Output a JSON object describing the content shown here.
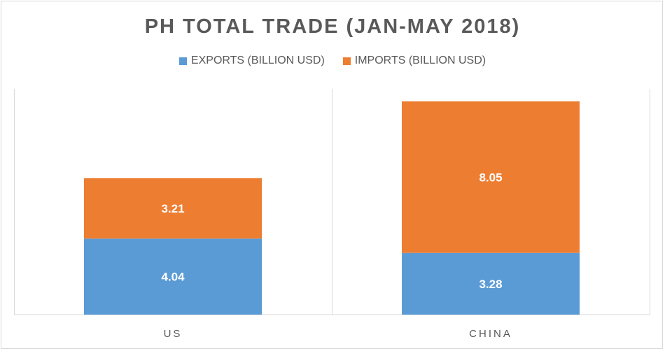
{
  "chart_data": {
    "type": "bar",
    "stacked": true,
    "title": "PH TOTAL TRADE (JAN-MAY 2018)",
    "categories": [
      "US",
      "CHINA"
    ],
    "series": [
      {
        "name": "EXPORTS (BILLION USD)",
        "values": [
          4.04,
          3.28
        ],
        "color": "#5b9bd5"
      },
      {
        "name": "IMPORTS (BILLION USD)",
        "values": [
          3.21,
          8.05
        ],
        "color": "#ed7d31"
      }
    ],
    "data_labels": [
      [
        "4.04",
        "3.28"
      ],
      [
        "3.21",
        "8.05"
      ]
    ],
    "xlabel": "",
    "ylabel": "",
    "ylim": [
      0,
      12
    ],
    "grid": false,
    "legend_position": "top"
  }
}
